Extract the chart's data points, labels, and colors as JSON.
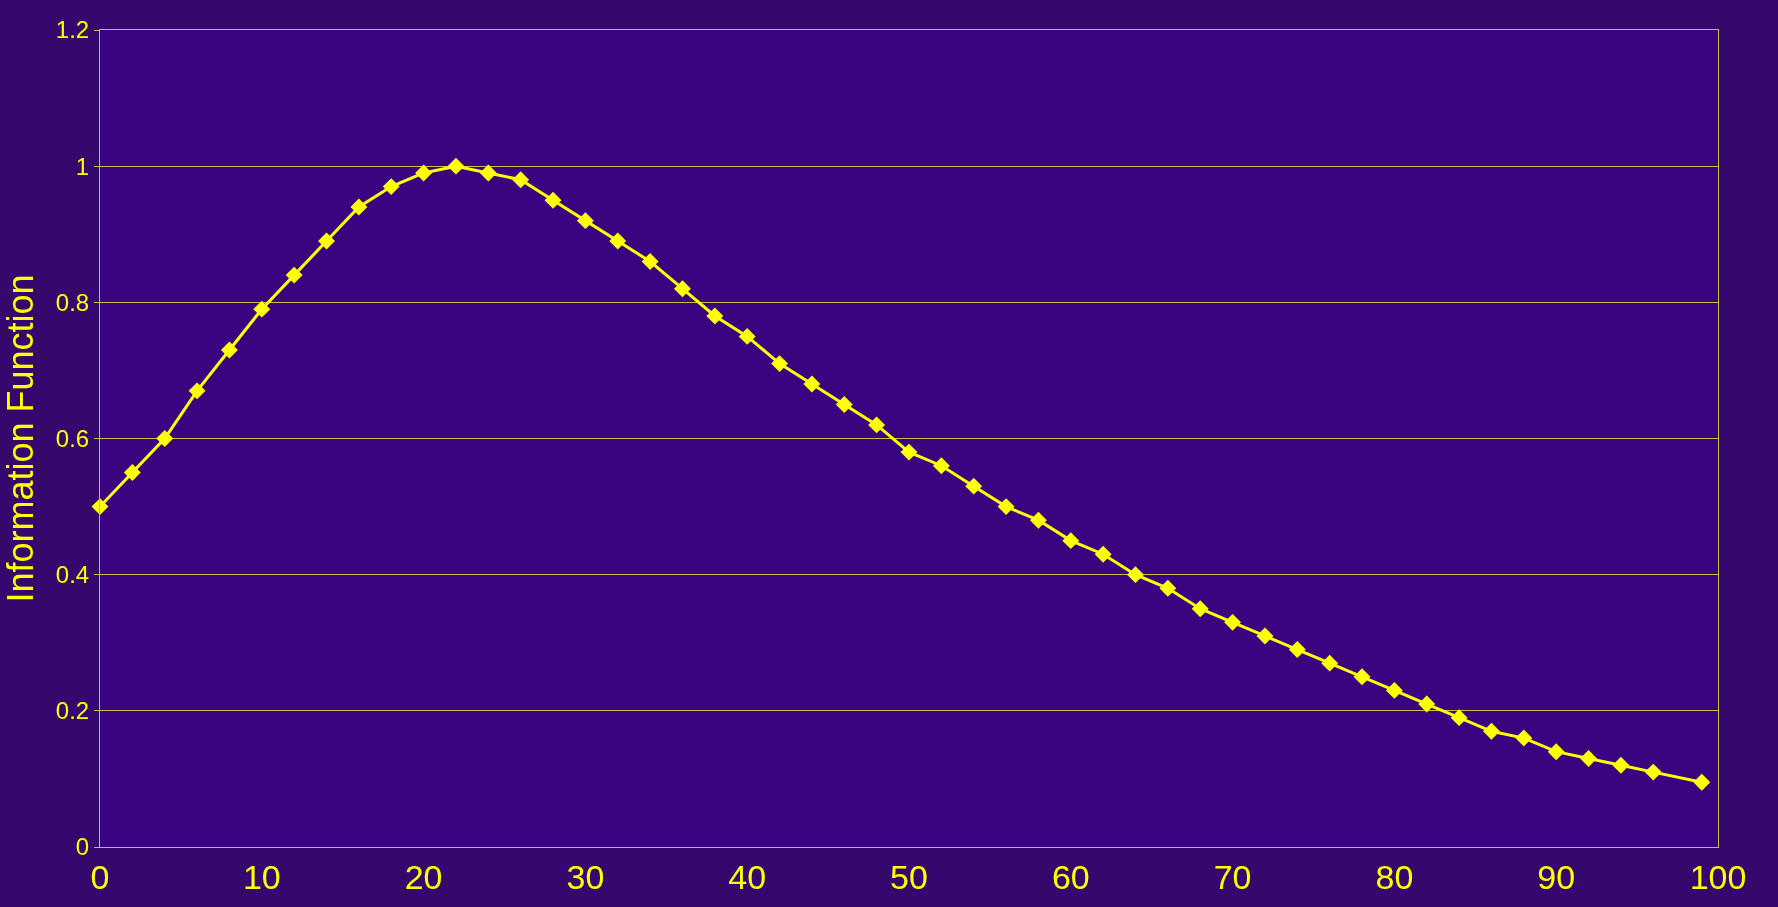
{
  "chart_data": {
    "type": "line",
    "ylabel": "Information Function",
    "x": [
      0,
      2,
      4,
      6,
      8,
      10,
      12,
      14,
      16,
      18,
      20,
      22,
      24,
      26,
      28,
      30,
      32,
      34,
      36,
      38,
      40,
      42,
      44,
      46,
      48,
      50,
      52,
      54,
      56,
      58,
      60,
      62,
      64,
      66,
      68,
      70,
      72,
      74,
      76,
      78,
      80,
      82,
      84,
      86,
      88,
      90,
      92,
      94,
      96,
      99
    ],
    "series": [
      {
        "color": "#ffff00",
        "values": [
          0.5,
          0.55,
          0.6,
          0.67,
          0.73,
          0.79,
          0.84,
          0.89,
          0.94,
          0.97,
          0.99,
          1.0,
          0.99,
          0.98,
          0.95,
          0.92,
          0.89,
          0.86,
          0.82,
          0.78,
          0.75,
          0.71,
          0.68,
          0.65,
          0.62,
          0.58,
          0.56,
          0.53,
          0.5,
          0.48,
          0.45,
          0.43,
          0.4,
          0.38,
          0.35,
          0.33,
          0.31,
          0.29,
          0.27,
          0.25,
          0.23,
          0.21,
          0.19,
          0.17,
          0.16,
          0.14,
          0.13,
          0.12,
          0.11,
          0.095
        ]
      }
    ],
    "xlim": [
      0,
      100
    ],
    "xticks": [
      0,
      10,
      20,
      30,
      40,
      50,
      60,
      70,
      80,
      90,
      100
    ],
    "ylim": [
      0,
      1.2
    ],
    "yticks": [
      0,
      0.2,
      0.4,
      0.6,
      0.8,
      1,
      1.2
    ],
    "grid": "y",
    "marker": "diamond",
    "line_style": "solid"
  }
}
